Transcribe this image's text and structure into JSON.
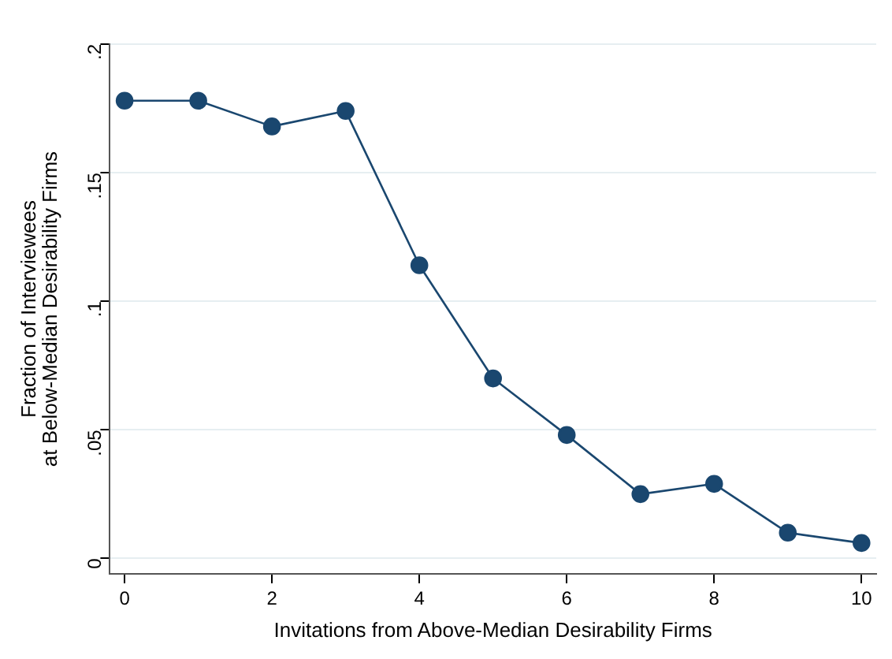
{
  "chart_data": {
    "type": "line",
    "xlabel": "Invitations from Above-Median Desirability Firms",
    "ylabel": "Fraction of Interviewees\nat Below-Median Desirability Firms",
    "x": [
      0,
      1,
      2,
      3,
      4,
      5,
      6,
      7,
      8,
      9,
      10
    ],
    "series": [
      {
        "color": "#1a476f",
        "values": [
          0.178,
          0.178,
          0.168,
          0.174,
          0.114,
          0.07,
          0.048,
          0.025,
          0.029,
          0.01,
          0.006
        ]
      }
    ],
    "xlim": [
      -0.2,
      10.2
    ],
    "xticks": [
      0,
      2,
      4,
      6,
      8,
      10
    ],
    "ylim": [
      -0.006,
      0.2
    ],
    "yticks": [
      {
        "value": 0,
        "label": "0"
      },
      {
        "value": 0.05,
        "label": ".05"
      },
      {
        "value": 0.1,
        "label": ".1"
      },
      {
        "value": 0.15,
        "label": ".15"
      },
      {
        "value": 0.2,
        "label": ".2"
      }
    ],
    "grid": "y",
    "marker": "circle",
    "line_style": "solid",
    "legend": false
  }
}
